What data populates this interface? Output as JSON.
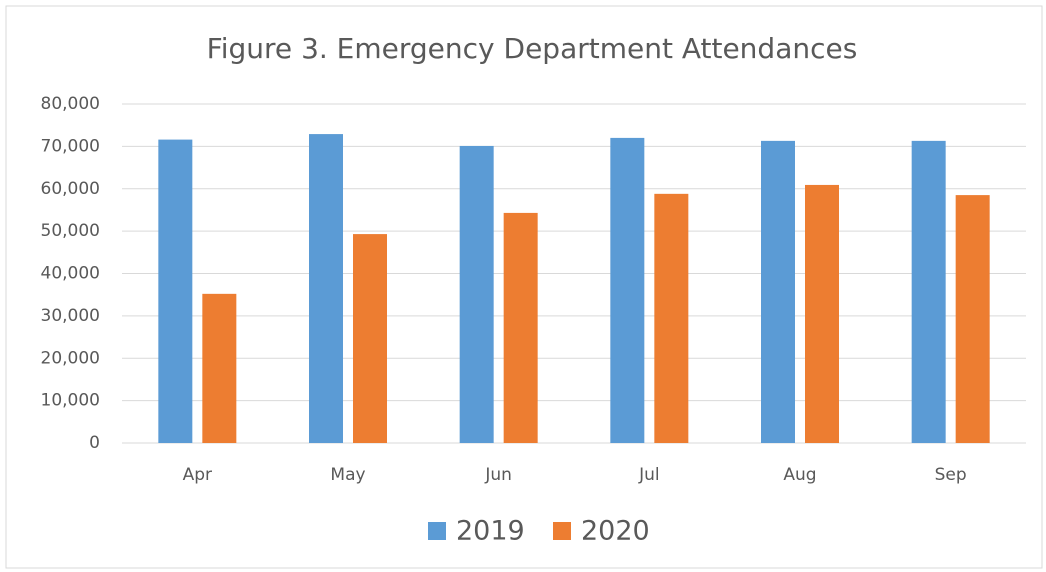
{
  "chart_data": {
    "type": "bar",
    "title": "Figure 3. Emergency Department Attendances",
    "categories": [
      "Apr",
      "May",
      "Jun",
      "Jul",
      "Aug",
      "Sep"
    ],
    "series": [
      {
        "name": "2019",
        "color": "#5b9bd5",
        "values": [
          71600,
          72900,
          70100,
          72000,
          71300,
          71300
        ]
      },
      {
        "name": "2020",
        "color": "#ed7d31",
        "values": [
          35200,
          49300,
          54300,
          58800,
          60900,
          58500
        ]
      }
    ],
    "ylim": [
      0,
      80000
    ],
    "yticks": [
      0,
      {
        "value": 10000,
        "label": "10,000"
      },
      {
        "value": 20000,
        "label": "20,000"
      },
      {
        "value": 30000,
        "label": "30,000"
      },
      {
        "value": 40000,
        "label": "40,000"
      },
      {
        "value": 50000,
        "label": "50,000"
      },
      {
        "value": 60000,
        "label": "60,000"
      },
      {
        "value": 70000,
        "label": "70,000"
      },
      {
        "value": 80000,
        "label": "80,000"
      }
    ],
    "grid": true,
    "legend": "bottom"
  }
}
